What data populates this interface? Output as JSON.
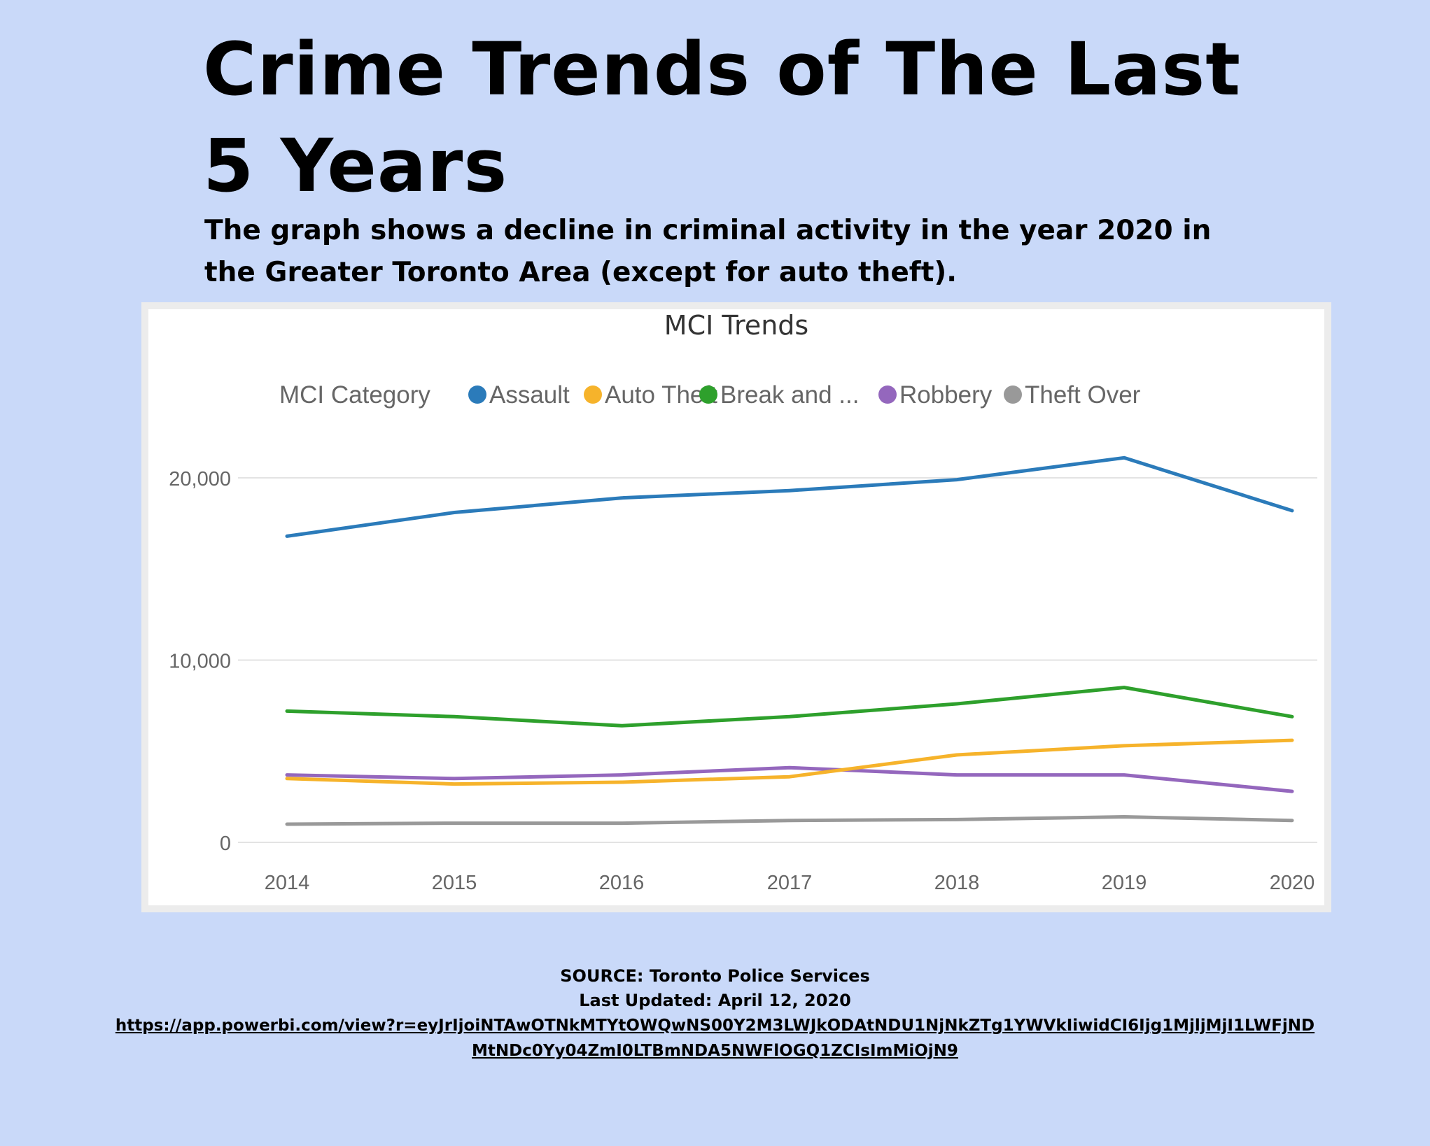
{
  "page": {
    "title_line1": "Crime Trends of The Last",
    "title_line2": "5 Years",
    "subtitle": "The graph shows a decline in criminal activity  in the year 2020  in the Greater Toronto Area (except for auto theft).",
    "source": "SOURCE: Toronto Police Services",
    "last_updated": "Last Updated: April 12, 2020",
    "link": "https://app.powerbi.com/view?r=eyJrIjoiNTAwOTNkMTYtOWQwNS00Y2M3LWJkODAtNDU1NjNkZTg1YWVkIiwidCI6Ijg1MjljMjI1LWFjNDMtNDc0Yy04ZmI0LTBmNDA5NWFlOGQ1ZCIsImMiOjN9"
  },
  "chart_data": {
    "type": "line",
    "title": "MCI Trends",
    "legend_title": "MCI Category",
    "legend_position": "top",
    "grid": true,
    "x": [
      "2014",
      "2015",
      "2016",
      "2017",
      "2018",
      "2019",
      "2020"
    ],
    "ylim": [
      0,
      20000
    ],
    "yticks": [
      0,
      10000,
      20000
    ],
    "ytick_labels": [
      "0",
      "10,000",
      "20,000"
    ],
    "series": [
      {
        "name": "Assault",
        "color": "#2b7bba",
        "values": [
          16800,
          18100,
          18900,
          19300,
          19900,
          21100,
          18200
        ]
      },
      {
        "name": "Auto Theft",
        "color": "#f6b32b",
        "values": [
          3500,
          3200,
          3300,
          3600,
          4800,
          5300,
          5600
        ]
      },
      {
        "name": "Break and ...",
        "color": "#2ea02c",
        "values": [
          7200,
          6900,
          6400,
          6900,
          7600,
          8500,
          6900
        ]
      },
      {
        "name": "Robbery",
        "color": "#9467bd",
        "values": [
          3700,
          3500,
          3700,
          4100,
          3700,
          3700,
          2800
        ]
      },
      {
        "name": "Theft Over",
        "color": "#999999",
        "values": [
          1000,
          1050,
          1050,
          1200,
          1250,
          1400,
          1200
        ]
      }
    ]
  }
}
